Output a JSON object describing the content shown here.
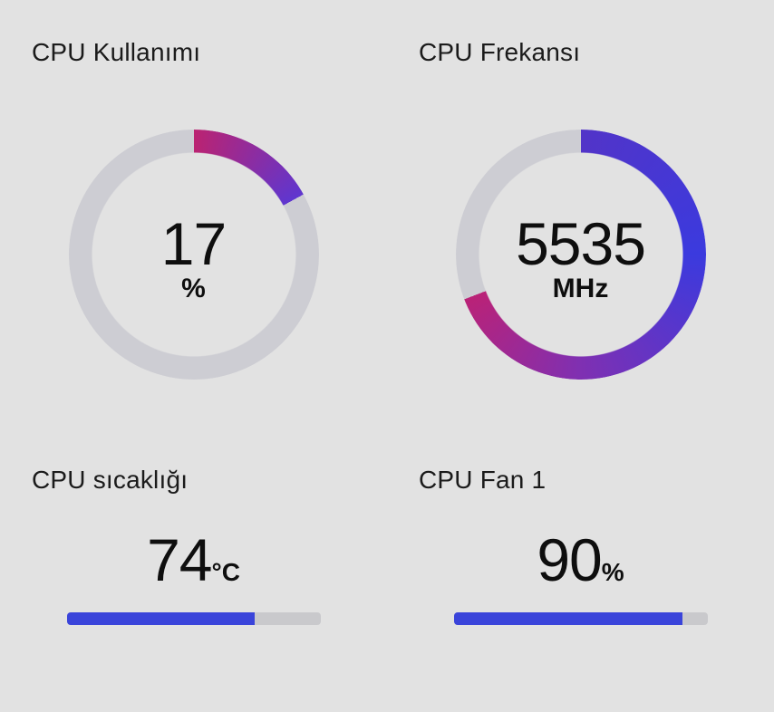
{
  "page": {
    "background": "#e2e2e2",
    "title_color": "#1b1b1b",
    "number_color": "#0e0e0e"
  },
  "gauges": [
    {
      "title": "CPU Kullanımı",
      "value": "17",
      "unit": "%",
      "percent": 17,
      "sweep_deg": 61.2,
      "track_color": "#cdcdd3",
      "gradient_stops": [
        {
          "deg": 0,
          "color": "#bb2371"
        },
        {
          "deg": 61.2,
          "color": "#5f36cf"
        }
      ]
    },
    {
      "title": "CPU Frekansı",
      "value": "5535",
      "unit": "MHz",
      "sweep_deg": 249,
      "track_color": "#cdcdd3",
      "gradient_stops": [
        {
          "deg": 0,
          "color": "#5234c8"
        },
        {
          "deg": 90,
          "color": "#3b3ade"
        },
        {
          "deg": 180,
          "color": "#7f30b2"
        },
        {
          "deg": 249,
          "color": "#ba2277"
        }
      ]
    }
  ],
  "bars": [
    {
      "title": "CPU sıcaklığı",
      "value": "74",
      "unit": "°C",
      "percent": 74,
      "fill_color": "#3a44da",
      "track_color": "#c9c9cc"
    },
    {
      "title": "CPU Fan 1",
      "value": "90",
      "unit": "%",
      "percent": 90,
      "fill_color": "#3a44da",
      "track_color": "#c9c9cc"
    }
  ]
}
